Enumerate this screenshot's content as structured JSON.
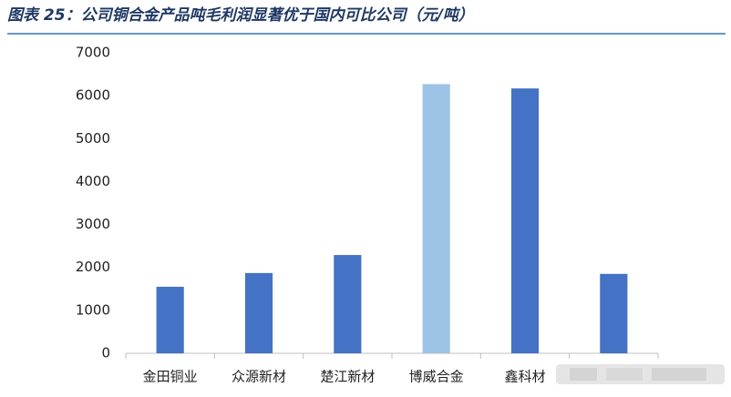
{
  "chart_data": {
    "type": "bar",
    "title": "图表 25：公司铜合金产品吨毛利润显著优于国内可比公司（元/吨）",
    "categories": [
      "金田铜业",
      "众源新材",
      "楚江新材",
      "博威合金",
      "鑫科材",
      null
    ],
    "values": [
      1550,
      1870,
      2290,
      6270,
      6170,
      1850
    ],
    "colors": [
      "#4472c4",
      "#4472c4",
      "#4472c4",
      "#9dc3e6",
      "#4472c4",
      "#4472c4"
    ],
    "ylim": [
      0,
      7000
    ],
    "yticks": [
      0,
      1000,
      2000,
      3000,
      4000,
      5000,
      6000,
      7000
    ],
    "grid": false
  }
}
